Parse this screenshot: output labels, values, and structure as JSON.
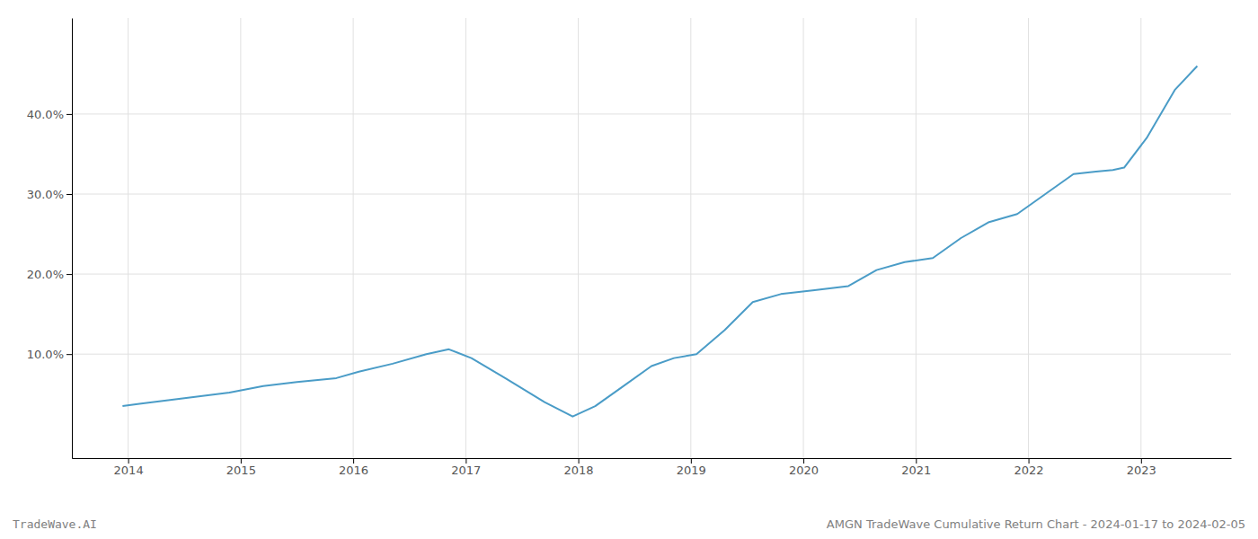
{
  "chart_data": {
    "type": "line",
    "title": "AMGN TradeWave Cumulative Return Chart - 2024-01-17 to 2024-02-05",
    "annotations": [
      "TradeWave.AI"
    ],
    "x": [
      2013.95,
      2014.1,
      2014.5,
      2014.9,
      2015.2,
      2015.5,
      2015.85,
      2016.05,
      2016.35,
      2016.65,
      2016.85,
      2017.05,
      2017.35,
      2017.7,
      2017.95,
      2018.15,
      2018.4,
      2018.65,
      2018.85,
      2019.05,
      2019.3,
      2019.55,
      2019.8,
      2020.1,
      2020.4,
      2020.65,
      2020.9,
      2021.15,
      2021.4,
      2021.65,
      2021.9,
      2022.15,
      2022.4,
      2022.6,
      2022.75,
      2022.85,
      2023.05,
      2023.3,
      2023.5
    ],
    "values": [
      3.5,
      3.8,
      4.5,
      5.2,
      6.0,
      6.5,
      7.0,
      7.8,
      8.8,
      10.0,
      10.6,
      9.5,
      7.0,
      4.0,
      2.2,
      3.5,
      6.0,
      8.5,
      9.5,
      10.0,
      13.0,
      16.5,
      17.5,
      18.0,
      18.5,
      20.5,
      21.5,
      22.0,
      24.5,
      26.5,
      27.5,
      30.0,
      32.5,
      32.8,
      33.0,
      33.3,
      37.0,
      43.0,
      46.0
    ],
    "color": "#4a9cc7",
    "xlim": [
      2013.5,
      2023.8
    ],
    "ylim": [
      -3,
      52
    ],
    "xticks": [
      2014,
      2015,
      2016,
      2017,
      2018,
      2019,
      2020,
      2021,
      2022,
      2023
    ],
    "yticks": [
      {
        "value": 10.0,
        "label": "10.0%"
      },
      {
        "value": 20.0,
        "label": "20.0%"
      },
      {
        "value": 30.0,
        "label": "30.0%"
      },
      {
        "value": 40.0,
        "label": "40.0%"
      }
    ],
    "grid": true
  }
}
